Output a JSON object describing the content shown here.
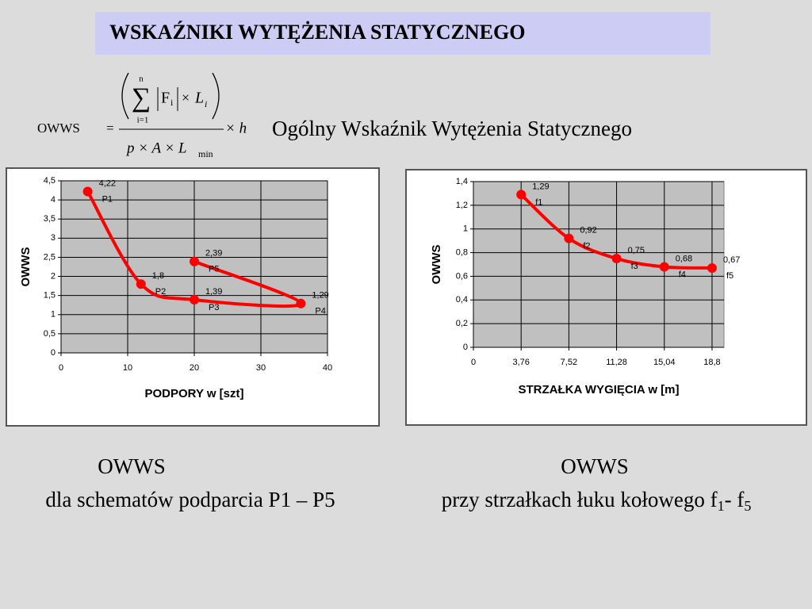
{
  "title": "WSKAŹNIKI WYTĘŻENIA STATYCZNEGO",
  "formula": {
    "lhs": "OWWS",
    "equals": "=",
    "sum": "∑",
    "sum_upper": "n",
    "sum_lower": "i=1",
    "force": "F",
    "force_index": "i",
    "times": "×",
    "length": "L",
    "length_index": "i",
    "denominator": "p × A × L",
    "denominator_index": "min",
    "factor": "× h"
  },
  "subtitle": "Ogólny Wskaźnik Wytężenia  Statycznego",
  "captions": {
    "left": {
      "title": "OWWS",
      "text": "dla schematów podparcia P1 – P5"
    },
    "right": {
      "title": "OWWS",
      "text": "przy strzałkach łuku kołowego f",
      "sub1": "1",
      "middle": "- f",
      "sub2": "5"
    }
  },
  "chart_data": [
    {
      "type": "line",
      "x_label": "PODPORY w [szt]",
      "y_label": "OWWS",
      "x": [
        4,
        12,
        20,
        36,
        20
      ],
      "values": [
        4.22,
        1.8,
        1.39,
        1.29,
        2.39
      ],
      "value_labels": [
        "4,22",
        "1,8",
        "1,39",
        "1,29",
        "2,39"
      ],
      "point_labels": [
        "P1",
        "P2",
        "P3",
        "P4",
        "P5"
      ],
      "color": "#ff0000",
      "xlim": [
        0,
        40
      ],
      "xticks": [
        0,
        10,
        20,
        30,
        40
      ],
      "ylim": [
        0,
        4.5
      ],
      "yticks": [
        0,
        {
          "value": 0.5,
          "label": "0,5"
        },
        1,
        {
          "value": 1.5,
          "label": "1,5"
        },
        2,
        {
          "value": 2.5,
          "label": "2,5"
        },
        3,
        {
          "value": 3.5,
          "label": "3,5"
        },
        4,
        {
          "value": 4.5,
          "label": "4,5"
        }
      ],
      "grid": true
    },
    {
      "type": "line",
      "x_label": "STRZAŁKA WYGIĘCIA w [m]",
      "y_label": "OWWS",
      "x": [
        3.76,
        7.52,
        11.28,
        15.04,
        18.8
      ],
      "values": [
        1.29,
        0.92,
        0.75,
        0.68,
        0.67
      ],
      "value_labels": [
        "1,29",
        "0,92",
        "0,75",
        "0,68",
        "0,67"
      ],
      "point_labels": [
        "f1",
        "f2",
        "f3",
        "f4",
        "f5"
      ],
      "color": "#ff0000",
      "xlim": [
        0,
        19.74
      ],
      "xticks": [
        0,
        {
          "value": 3.76,
          "label": "3,76"
        },
        {
          "value": 7.52,
          "label": "7,52"
        },
        {
          "value": 11.28,
          "label": "11,28"
        },
        {
          "value": 15.04,
          "label": "15,04"
        },
        {
          "value": 18.8,
          "label": "18,8"
        }
      ],
      "ylim": [
        0,
        1.4
      ],
      "yticks": [
        0,
        {
          "value": 0.2,
          "label": "0,2"
        },
        {
          "value": 0.4,
          "label": "0,4"
        },
        {
          "value": 0.6,
          "label": "0,6"
        },
        {
          "value": 0.8,
          "label": "0,8"
        },
        1,
        {
          "value": 1.2,
          "label": "1,2"
        },
        {
          "value": 1.4,
          "label": "1,4"
        }
      ],
      "grid": true
    }
  ]
}
